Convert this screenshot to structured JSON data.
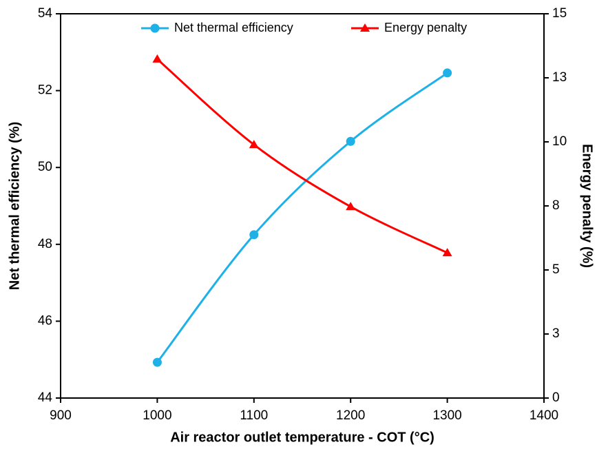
{
  "chart_data": {
    "type": "line",
    "x_label": "Air reactor outlet temperature - COT (°C)",
    "y_label": "Net thermal efficiency (%)",
    "y2_label": "Energy penalty (%)",
    "x": [
      1000,
      1100,
      1200,
      1300
    ],
    "xlim": [
      900,
      1400
    ],
    "xticks": [
      900,
      1000,
      1100,
      1200,
      1300,
      1400
    ],
    "ylim": [
      44,
      54
    ],
    "yticks": [
      44,
      46,
      48,
      50,
      52,
      54
    ],
    "y2lim": [
      0,
      15
    ],
    "y2ticks": [
      0,
      {
        "value": 2.5,
        "label": "3"
      },
      5,
      {
        "value": 7.5,
        "label": "8"
      },
      10,
      {
        "value": 12.5,
        "label": "13"
      },
      15
    ],
    "legend": "top",
    "series": [
      {
        "name": "Net thermal efficiency",
        "color": "#1db1e8",
        "marker": "circle",
        "values": [
          44.93,
          48.25,
          50.68,
          52.46
        ]
      },
      {
        "name": "Energy penalty",
        "color": "#ff0000",
        "marker": "triangle",
        "axis": "y2",
        "values": [
          13.23,
          9.89,
          7.47,
          5.67
        ]
      }
    ]
  }
}
